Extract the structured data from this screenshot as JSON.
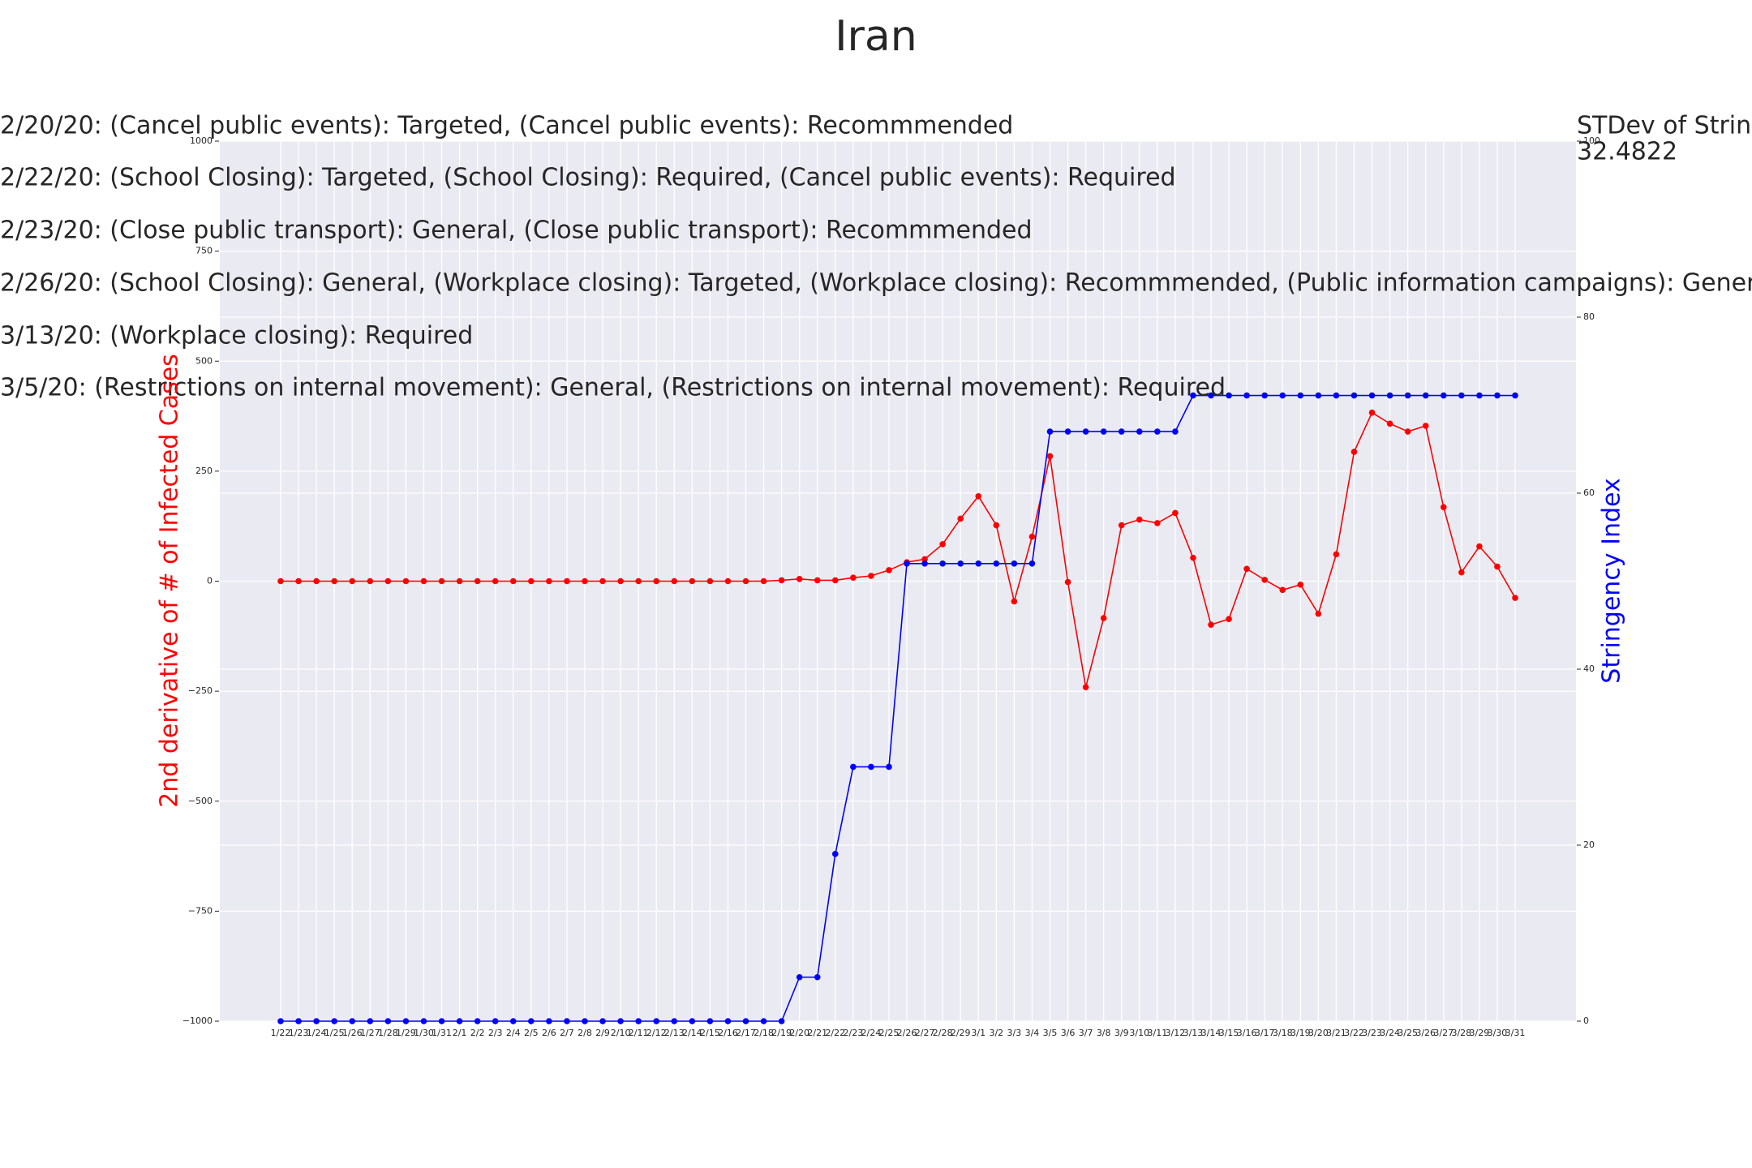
{
  "chart_data": {
    "type": "line",
    "title": "Iran",
    "y_label": "2nd derivative of # of Infected Cases",
    "y2_label": "Stringency Index",
    "annotations": [
      "2/20/20: (Cancel public events): Targeted, (Cancel public events): Recommmended",
      "2/22/20: (School Closing): Targeted, (School Closing): Required, (Cancel public events): Required",
      "2/23/20: (Close public transport): General, (Close public transport): Recommmended",
      "2/26/20: (School Closing): General, (Workplace closing): Targeted, (Workplace closing): Recommmended, (Public information campaigns): General, (Public informa",
      "3/13/20: (Workplace closing): Required",
      "3/5/20: (Restrictions on internal movement): General, (Restrictions on internal movement): Required"
    ],
    "stdev_label": "STDev of Stringe",
    "stdev_value": "32.4822",
    "categories": [
      "1/22",
      "1/23",
      "1/24",
      "1/25",
      "1/26",
      "1/27",
      "1/28",
      "1/29",
      "1/30",
      "1/31",
      "2/1",
      "2/2",
      "2/3",
      "2/4",
      "2/5",
      "2/6",
      "2/7",
      "2/8",
      "2/9",
      "2/10",
      "2/11",
      "2/12",
      "2/13",
      "2/14",
      "2/15",
      "2/16",
      "2/17",
      "2/18",
      "2/19",
      "2/20",
      "2/21",
      "2/22",
      "2/23",
      "2/24",
      "2/25",
      "2/26",
      "2/27",
      "2/28",
      "2/29",
      "3/1",
      "3/2",
      "3/3",
      "3/4",
      "3/5",
      "3/6",
      "3/7",
      "3/8",
      "3/9",
      "3/10",
      "3/11",
      "3/12",
      "3/13",
      "3/14",
      "3/15",
      "3/16",
      "3/17",
      "3/18",
      "3/19",
      "3/20",
      "3/21",
      "3/22",
      "3/23",
      "3/24",
      "3/25",
      "3/26",
      "3/27",
      "3/28",
      "3/29",
      "3/30",
      "3/31"
    ],
    "series": [
      {
        "name": "2nd derivative of # of Infected Cases",
        "color": "#ff0000",
        "values": [
          0,
          0,
          0,
          0,
          0,
          0,
          0,
          0,
          0,
          0,
          0,
          0,
          0,
          0,
          0,
          0,
          0,
          0,
          0,
          0,
          0,
          0,
          0,
          0,
          0,
          0,
          0,
          0,
          2,
          5,
          2,
          2,
          8,
          12,
          25,
          43,
          50,
          84,
          142,
          193,
          127,
          -46,
          101,
          284,
          -2,
          -241,
          -84,
          127,
          140,
          132,
          155,
          53,
          -99,
          -86,
          28,
          3,
          -20,
          -8,
          -74,
          61,
          294,
          383,
          358,
          340,
          353,
          168,
          20,
          79,
          33,
          -38
        ]
      },
      {
        "name": "Stringency Index",
        "color": "#0000ff",
        "axis": "y2",
        "values": [
          0,
          0,
          0,
          0,
          0,
          0,
          0,
          0,
          0,
          0,
          0,
          0,
          0,
          0,
          0,
          0,
          0,
          0,
          0,
          0,
          0,
          0,
          0,
          0,
          0,
          0,
          0,
          0,
          0,
          5,
          5,
          19,
          28.9,
          28.9,
          28.9,
          52,
          52,
          52,
          52,
          52,
          52,
          52,
          52,
          67,
          67,
          67,
          67,
          67,
          67,
          67,
          67,
          71.1,
          71.1,
          71.1,
          71.1,
          71.1,
          71.1,
          71.1,
          71.1,
          71.1,
          71.1,
          71.1,
          71.1,
          71.1,
          71.1,
          71.1,
          71.1,
          71.1,
          71.1,
          71.1
        ]
      }
    ],
    "ylim": [
      -1000,
      1000
    ],
    "yticks": [
      {
        "value": -1000,
        "label": "−1000"
      },
      {
        "value": -750,
        "label": "−750"
      },
      {
        "value": -500,
        "label": "−500"
      },
      {
        "value": -250,
        "label": "−250"
      },
      0,
      250,
      500,
      750,
      1000
    ],
    "y2lim": [
      0,
      100
    ],
    "y2ticks": [
      0,
      20,
      40,
      60,
      80,
      100
    ],
    "grid": true
  }
}
